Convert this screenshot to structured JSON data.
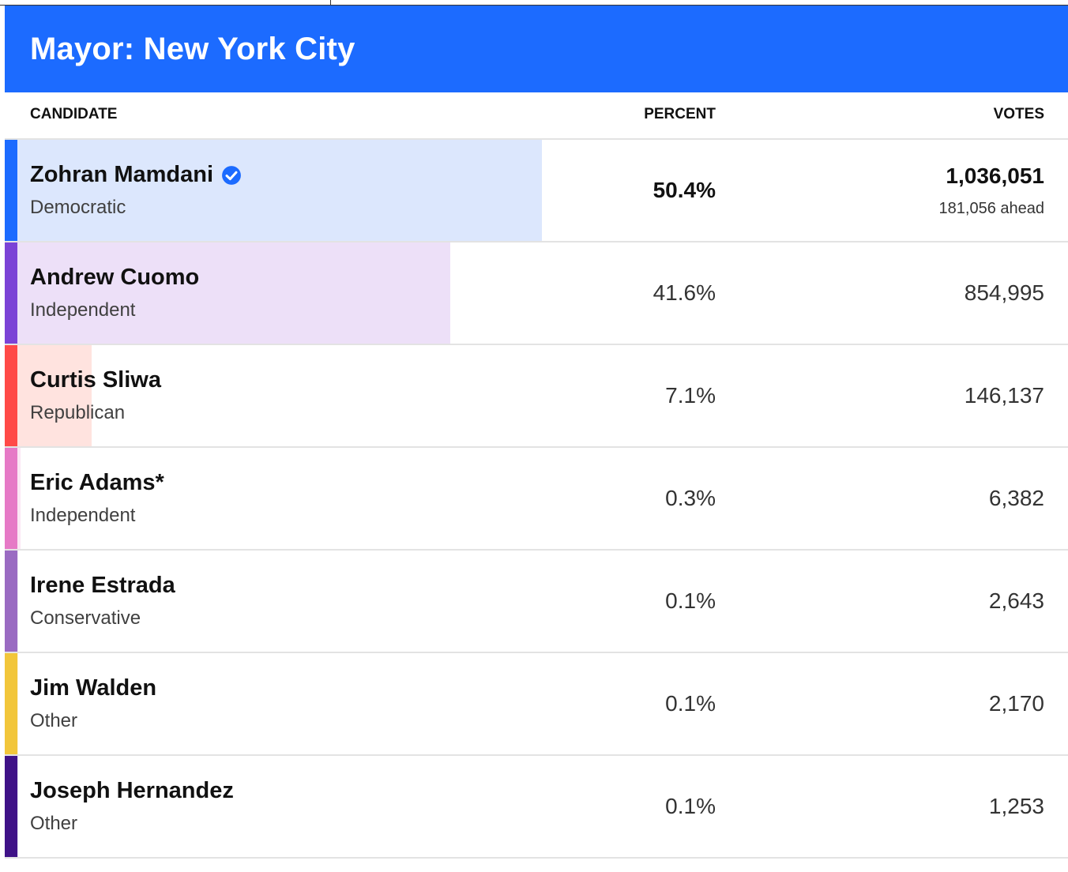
{
  "header": {
    "title": "Mayor: New York City"
  },
  "columns": {
    "candidate": "CANDIDATE",
    "percent": "PERCENT",
    "votes": "VOTES"
  },
  "chart_data": {
    "type": "table",
    "title": "Mayor: New York City",
    "max_percent": 50.4,
    "candidates": [
      {
        "name": "Zohran Mamdani",
        "party": "Democratic",
        "percent_label": "50.4%",
        "percent": 50.4,
        "votes": "1,036,051",
        "margin": "181,056 ahead",
        "winner": true,
        "color": "#1c6bff",
        "fill": "#dce7fd"
      },
      {
        "name": "Andrew Cuomo",
        "party": "Independent",
        "percent_label": "41.6%",
        "percent": 41.6,
        "votes": "854,995",
        "winner": false,
        "color": "#7b43d6",
        "fill": "#ede0f8"
      },
      {
        "name": "Curtis Sliwa",
        "party": "Republican",
        "percent_label": "7.1%",
        "percent": 7.1,
        "votes": "146,137",
        "winner": false,
        "color": "#ff4a47",
        "fill": "#ffe3df"
      },
      {
        "name": "Eric Adams*",
        "party": "Independent",
        "percent_label": "0.3%",
        "percent": 0.3,
        "votes": "6,382",
        "winner": false,
        "color": "#e679c6",
        "fill": "#fbe6f4"
      },
      {
        "name": "Irene Estrada",
        "party": "Conservative",
        "percent_label": "0.1%",
        "percent": 0.1,
        "votes": "2,643",
        "winner": false,
        "color": "#9a6bc2",
        "fill": "#efe6f7"
      },
      {
        "name": "Jim Walden",
        "party": "Other",
        "percent_label": "0.1%",
        "percent": 0.1,
        "votes": "2,170",
        "winner": false,
        "color": "#f2c63b",
        "fill": "#fdf3d6"
      },
      {
        "name": "Joseph Hernandez",
        "party": "Other",
        "percent_label": "0.1%",
        "percent": 0.1,
        "votes": "1,253",
        "winner": false,
        "color": "#3f1287",
        "fill": "#e5ddf2"
      }
    ]
  }
}
